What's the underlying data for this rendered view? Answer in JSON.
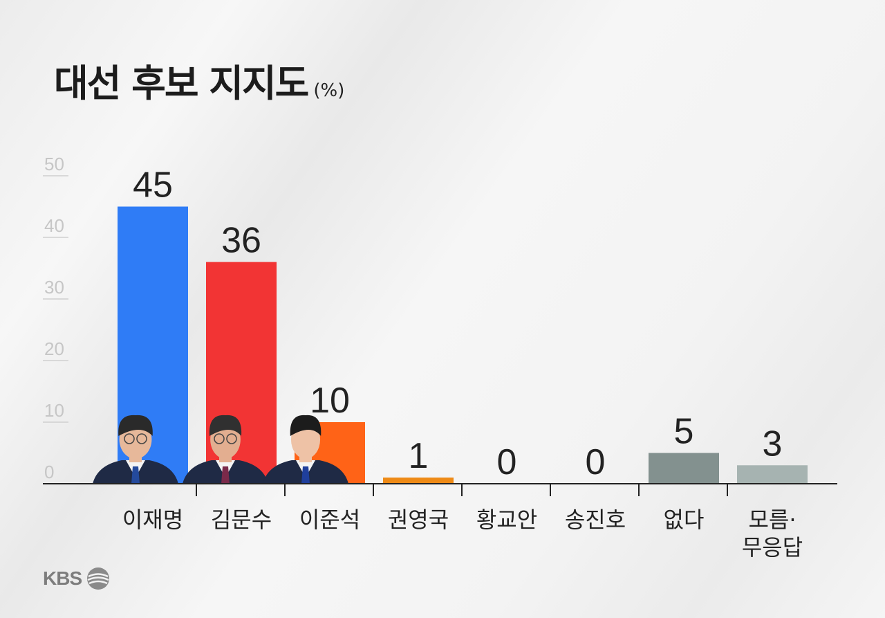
{
  "title": "대선 후보 지지도",
  "title_unit": "(%)",
  "logo_text": "KBS",
  "chart_data": {
    "type": "bar",
    "title": "대선 후보 지지도",
    "unit": "%",
    "categories": [
      "이재명",
      "김문수",
      "이준석",
      "권영국",
      "황교안",
      "송진호",
      "없다",
      "모름·무응답"
    ],
    "category_lines": [
      [
        "이재명"
      ],
      [
        "김문수"
      ],
      [
        "이준석"
      ],
      [
        "권영국"
      ],
      [
        "황교안"
      ],
      [
        "송진호"
      ],
      [
        "없다"
      ],
      [
        "모름·",
        "무응답"
      ]
    ],
    "values": [
      45,
      36,
      10,
      1,
      0,
      0,
      5,
      3
    ],
    "colors": [
      "#2f7cf6",
      "#f23434",
      "#ff6317",
      "#ee8a16",
      "#cccccc",
      "#cccccc",
      "#83918f",
      "#a6b3b1"
    ],
    "ylim": [
      0,
      50
    ],
    "yticks": [
      0,
      10,
      20,
      30,
      40,
      50
    ],
    "photos": [
      "이재명",
      "김문수",
      "이준석"
    ],
    "grid": false
  }
}
